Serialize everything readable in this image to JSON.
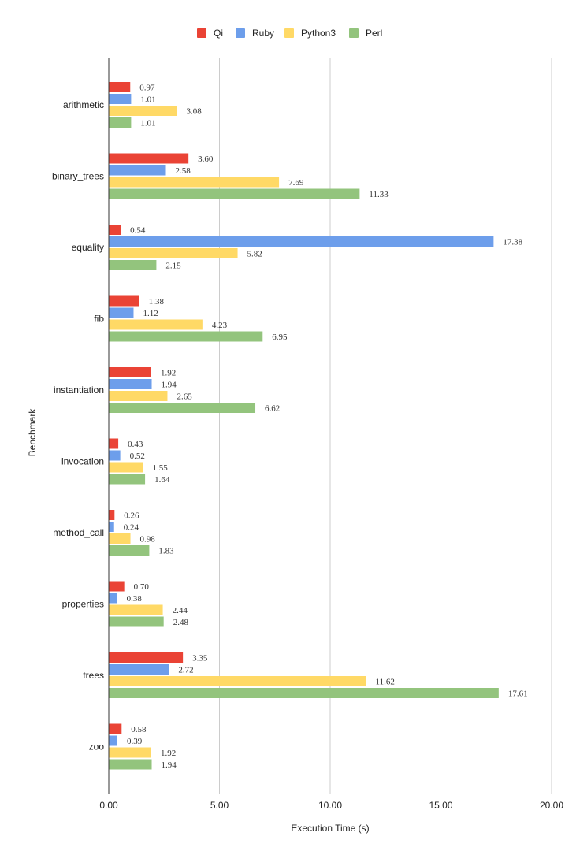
{
  "chart_data": {
    "type": "bar",
    "orientation": "horizontal",
    "title": "",
    "xlabel": "Execution Time (s)",
    "ylabel": "Benchmark",
    "xlim": [
      0,
      20
    ],
    "xticks": [
      0,
      5,
      10,
      15,
      20
    ],
    "xtick_labels": [
      "0.00",
      "5.00",
      "10.00",
      "15.00",
      "20.00"
    ],
    "grid": true,
    "legend_position": "top",
    "categories": [
      "arithmetic",
      "binary_trees",
      "equality",
      "fib",
      "instantiation",
      "invocation",
      "method_call",
      "properties",
      "trees",
      "zoo"
    ],
    "series": [
      {
        "name": "Qi",
        "color": "#EA4335",
        "values": [
          0.97,
          3.6,
          0.54,
          1.38,
          1.92,
          0.43,
          0.26,
          0.7,
          3.35,
          0.58
        ],
        "labels": [
          "0.97",
          "3.60",
          "0.54",
          "1.38",
          "1.92",
          "0.43",
          "0.26",
          "0.70",
          "3.35",
          "0.58"
        ]
      },
      {
        "name": "Ruby",
        "color": "#6D9EEB",
        "values": [
          1.01,
          2.58,
          17.38,
          1.12,
          1.94,
          0.52,
          0.24,
          0.38,
          2.72,
          0.39
        ],
        "labels": [
          "1.01",
          "2.58",
          "17.38",
          "1.12",
          "1.94",
          "0.52",
          "0.24",
          "0.38",
          "2.72",
          "0.39"
        ]
      },
      {
        "name": "Python3",
        "color": "#FFD966",
        "values": [
          3.08,
          7.69,
          5.82,
          4.23,
          2.65,
          1.55,
          0.98,
          2.44,
          11.62,
          1.92
        ],
        "labels": [
          "3.08",
          "7.69",
          "5.82",
          "4.23",
          "2.65",
          "1.55",
          "0.98",
          "2.44",
          "11.62",
          "1.92"
        ]
      },
      {
        "name": "Perl",
        "color": "#93C47D",
        "values": [
          1.01,
          11.33,
          2.15,
          6.95,
          6.62,
          1.64,
          1.83,
          2.48,
          17.61,
          1.94
        ],
        "labels": [
          "1.01",
          "11.33",
          "2.15",
          "6.95",
          "6.62",
          "1.64",
          "1.83",
          "2.48",
          "17.61",
          "1.94"
        ]
      }
    ]
  }
}
